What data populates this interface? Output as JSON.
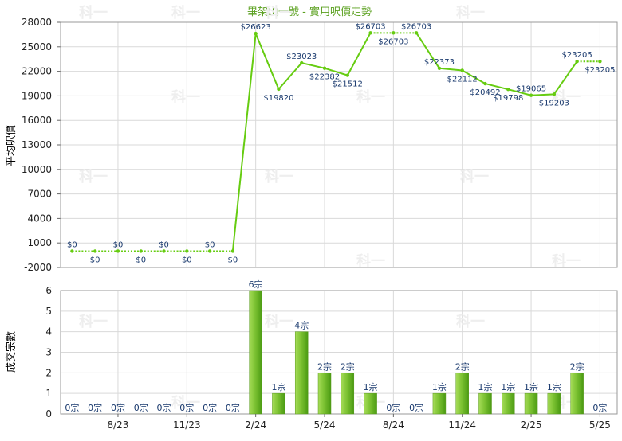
{
  "chart_data": [
    {
      "type": "line",
      "title": "畢架山一號 - 實用呎價走勢",
      "ylabel": "平均呎價",
      "ylim": [
        -2000,
        28000
      ],
      "yticks": [
        -2000,
        1000,
        4000,
        7000,
        10000,
        13000,
        16000,
        19000,
        22000,
        25000,
        28000
      ],
      "series": [
        {
          "values": [
            0,
            0,
            0,
            0,
            0,
            0,
            0,
            0,
            26623,
            19820,
            23023,
            22382,
            21512,
            26703,
            26703,
            26703,
            22373,
            22112,
            20492,
            19798,
            19065,
            19203,
            23205,
            23205
          ],
          "labels": [
            "$0",
            "$0",
            "$0",
            "$0",
            "$0",
            "$0",
            "$0",
            "$0",
            "$26623",
            "$19820",
            "$23023",
            "$22382",
            "$21512",
            "$26703",
            "$26703",
            "$26703",
            "$22373",
            "$22112",
            "$20492",
            "$19798",
            "$19065",
            "$19203",
            "$23205",
            "$23205"
          ]
        }
      ],
      "grid": true
    },
    {
      "type": "bar",
      "ylabel": "成交宗數",
      "ylim": [
        0,
        6
      ],
      "yticks": [
        0,
        1,
        2,
        3,
        4,
        5,
        6
      ],
      "x_tick_labels": [
        "8/23",
        "11/23",
        "2/24",
        "5/24",
        "8/24",
        "11/24",
        "2/25",
        "5/25"
      ],
      "values": [
        0,
        0,
        0,
        0,
        0,
        0,
        0,
        0,
        6,
        1,
        4,
        2,
        2,
        1,
        0,
        0,
        1,
        2,
        1,
        1,
        1,
        1,
        2,
        0
      ],
      "labels": [
        "0宗",
        "0宗",
        "0宗",
        "0宗",
        "0宗",
        "0宗",
        "0宗",
        "0宗",
        "6宗",
        "1宗",
        "4宗",
        "2宗",
        "2宗",
        "1宗",
        "0宗",
        "0宗",
        "1宗",
        "2宗",
        "1宗",
        "1宗",
        "1宗",
        "1宗",
        "2宗",
        "0宗"
      ],
      "grid": true
    }
  ],
  "watermark": "科一",
  "colors": {
    "line": "#66cc11",
    "bar_light": "#a6dc58",
    "bar_dark": "#4a9a12",
    "title": "#5aa01e",
    "label": "#1a3a6e",
    "grid": "#d9d9d9"
  }
}
